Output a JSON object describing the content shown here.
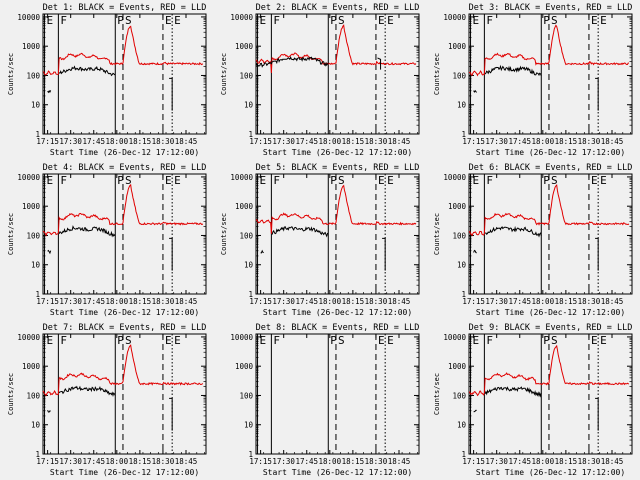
{
  "chart_data": [
    {
      "type": "line",
      "title": "Det 1: BLACK = Events, RED = LLD",
      "ylabel": "Counts/sec",
      "xlabel": "Start Time (26-Dec-12 17:12:00)",
      "has_data": true,
      "lowlld": true,
      "black_gap": true
    },
    {
      "type": "line",
      "title": "Det 2: BLACK = Events, RED = LLD",
      "ylabel": "Counts/sec",
      "xlabel": "Start Time (26-Dec-12 17:12:00)",
      "has_data": true,
      "lowlld": false,
      "black_gap": false
    },
    {
      "type": "line",
      "title": "Det 3: BLACK = Events, RED = LLD",
      "ylabel": "Counts/sec",
      "xlabel": "Start Time (26-Dec-12 17:12:00)",
      "has_data": true,
      "lowlld": true,
      "black_gap": true
    },
    {
      "type": "line",
      "title": "Det 4: BLACK = Events, RED = LLD",
      "ylabel": "Counts/sec",
      "xlabel": "Start Time (26-Dec-12 17:12:00)",
      "has_data": true,
      "lowlld": true,
      "black_gap": true
    },
    {
      "type": "line",
      "title": "Det 5: BLACK = Events, RED = LLD",
      "ylabel": "Counts/sec",
      "xlabel": "Start Time (26-Dec-12 17:12:00)",
      "has_data": true,
      "lowlld": false,
      "black_gap": true
    },
    {
      "type": "line",
      "title": "Det 6: BLACK = Events, RED = LLD",
      "ylabel": "Counts/sec",
      "xlabel": "Start Time (26-Dec-12 17:12:00)",
      "has_data": true,
      "lowlld": true,
      "black_gap": true
    },
    {
      "type": "line",
      "title": "Det 7: BLACK = Events, RED = LLD",
      "ylabel": "Counts/sec",
      "xlabel": "Start Time (26-Dec-12 17:12:00)",
      "has_data": true,
      "lowlld": true,
      "black_gap": true
    },
    {
      "type": "line",
      "title": "Det 8: BLACK = Events, RED = LLD",
      "ylabel": "",
      "xlabel": "Start Time (26-Dec-12 17:12:00)",
      "has_data": false,
      "lowlld": false,
      "black_gap": false
    },
    {
      "type": "line",
      "title": "Det 9: BLACK = Events, RED = LLD",
      "ylabel": "Counts/sec",
      "xlabel": "Start Time (26-Dec-12 17:12:00)",
      "has_data": true,
      "lowlld": true,
      "black_gap": true
    }
  ],
  "shared": {
    "xticks": [
      "17:15",
      "17:30",
      "17:45",
      "18:00",
      "18:15",
      "18:30",
      "18:45"
    ],
    "xtick_minutes": [
      15,
      30,
      45,
      60,
      75,
      90,
      105
    ],
    "xrange_minutes": [
      12,
      118
    ],
    "yticks": [
      "1",
      "10",
      "100",
      "1000",
      "10000"
    ],
    "yrange_log10": [
      0,
      4.1
    ],
    "markers": [
      {
        "label": "E",
        "minute": 13,
        "style": "solid"
      },
      {
        "label": "F",
        "minute": 22,
        "style": "solid"
      },
      {
        "label": "P",
        "minute": 59,
        "style": "solid"
      },
      {
        "label": "S",
        "minute": 64,
        "style": "dashed"
      },
      {
        "label": "E",
        "minute": 90,
        "style": "dashed"
      },
      {
        "label": "E",
        "minute": 96,
        "style": "dotted"
      }
    ],
    "colors": {
      "events": "#000000",
      "lld": "#e00000",
      "axes": "#000000",
      "background": "#f0f0f0"
    }
  }
}
